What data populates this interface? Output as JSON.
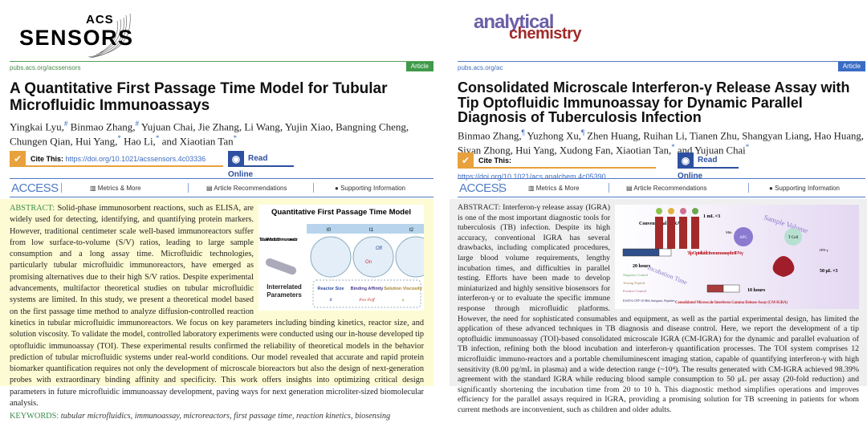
{
  "left": {
    "logo": {
      "top": "ACS",
      "main": "SENSORS"
    },
    "url": "pubs.acs.org/acssensors",
    "badge": "Article",
    "badge_color": "#3f9a4a",
    "title": "A Quantitative First Passage Time Model for Tubular Microfluidic Immunoassays",
    "authors": [
      {
        "n": "Yingkai Lyu,",
        "m": "#"
      },
      {
        "n": " Binmao Zhang,",
        "m": "#"
      },
      {
        "n": " Yujuan Chai, Jie Zhang, Li Wang, Yujin Xiao, Bangning Cheng, Chungen Qian, Hui Yang,",
        "m": "*"
      },
      {
        "n": " Hao Li,",
        "m": "*"
      },
      {
        "n": " and Xiaotian Tan",
        "m": "*"
      }
    ],
    "cite_label": "Cite This:",
    "doi": "https://doi.org/10.1021/acssensors.4c03336",
    "read_online": "Read Online",
    "access": "ACCESS",
    "metrics": "Metrics & More",
    "recommendations": "Article Recommendations",
    "supporting": "Supporting Information",
    "abstract_label": "ABSTRACT:",
    "abstract": "Solid-phase immunosorbent reactions, such as ELISA, are widely used for detecting, identifying, and quantifying protein markers. However, traditional centimeter scale well-based immunoreactors suffer from low surface-to-volume (S/V) ratios, leading to large sample consumption and a long assay time. Microfluidic technologies, particularly tubular microfluidic immunoreactors, have emerged as promising alternatives due to their high S/V ratios. Despite experimental advancements, multifactor theoretical studies on tubular microfluidic systems are limited. In this study, we present a theoretical model based on the first passage time method to analyze diffusion-controlled reaction kinetics in tubular microfluidic immunoreactors. We focus on key parameters including binding kinetics, reactor size, and solution viscosity. To validate the model, controlled laboratory experiments were conducted using our in-house developed tip optofluidic immunoassay (TOI). These experimental results confirmed the reliability of theoretical models in the behavior prediction of tubular microfluidic systems under real-world conditions. Our model revealed that accurate and rapid protein biomarker quantification requires not only the development of microscale bioreactors but also the design of next-generation probes with extraordinary binding affinity and specificity. This work offers insights into optimizing critical design parameters in future microfluidic immunoassay development, paving ways for next generation microliter-sized biomolecular analysis.",
    "keywords_label": "KEYWORDS:",
    "keywords": "tubular microfluidics, immunoassay, microreactors, first passage time, reaction kinetics, biosensing",
    "figure": {
      "title": "Quantitative First Passage Time Model",
      "t0": "t0",
      "t1": "t1",
      "t2": "t2",
      "reactor": "Tubular Microfluidic Immuno-reactor",
      "off": "Off",
      "on": "On",
      "params": "Interrelated Parameters",
      "p1": "Reactor Size",
      "p1s": "R",
      "p2": "Binding Affinity",
      "p2s": "Pon Poff",
      "p3": "Solution Viscosity",
      "p3s": "η"
    }
  },
  "right": {
    "logo": {
      "top": "analytical",
      "bottom": "chemistry"
    },
    "url": "pubs.acs.org/ac",
    "badge": "Article",
    "badge_color": "#3a6cc4",
    "title": "Consolidated Microscale Interferon-γ Release Assay with Tip Optofluidic Immunoassay for Dynamic Parallel Diagnosis of Tuberculosis Infection",
    "authors": [
      {
        "n": "Binmao Zhang,",
        "m": "¶"
      },
      {
        "n": " Yuzhong Xu,",
        "m": "¶"
      },
      {
        "n": " Zhen Huang, Ruihan Li, Tianen Zhu, Shangyan Liang, Hao Huang, Siyan Zhong, Hui Yang, Xudong Fan, Xiaotian Tan,",
        "m": "*"
      },
      {
        "n": " and Yujuan Chai",
        "m": "*"
      }
    ],
    "cite_label": "Cite This:",
    "doi": "https://doi.org/10.1021/acs.analchem.4c05390",
    "read_online": "Read Online",
    "access": "ACCESS",
    "metrics": "Metrics & More",
    "recommendations": "Article Recommendations",
    "supporting": "Supporting Information",
    "abstract_label": "ABSTRACT:",
    "abstract": "Interferon-γ release assay (IGRA) is one of the most important diagnostic tools for tuberculosis (TB) infection. Despite its high accuracy, conventional IGRA has several drawbacks, including complicated procedures, large blood volume requirements, lengthy incubation times, and difficulties in parallel testing. Efforts have been made to develop miniaturized and highly sensitive biosensors for interferon-γ or to evaluate the specific immune response through microfluidic platforms. However, the need for sophisticated consumables and equipment, as well as the partial experimental design, has limited the application of these advanced techniques in TB diagnosis and disease control. Here, we report the development of a tip optofluidic immunoassay (TOI)-based consolidated microscale IGRA (CM-IGRA) for the dynamic and parallel evaluation of TB infection, refining both the blood incubation and interferon-γ quantification processes. The TOI system comprises 12 microfluidic immuno-reactors and a portable chemiluminescent imaging station, capable of quantifying interferon-γ with high sensitivity (8.00 pg/mL in plasma) and a wide detection range (~10⁴). The results generated with CM-IGRA achieved 98.39% agreement with the standard IGRA while reducing blood sample consumption to 50 μL per assay (20-fold reduction) and significantly shortening the incubation time from 20 to 10 h. This diagnostic method simplifies operations and improves efficiency for the parallel assays required in IGRA, providing a promising solution for TB screening in patients for whom current methods are inconvenient, such as children and older adults.",
    "figure": {
      "conv": "Conventional IGRA",
      "ml": "1 mL ×3",
      "hours20": "20 hours",
      "sample": "Sample Volume",
      "tip": "Tip Optofluidic Immunoassay for IFN-γ",
      "incub": "Incubation Time",
      "hours10": "10 hours",
      "ul": "50 μL ×3",
      "cm": "Consolidated Microscale Interferon Gamma Release Assay (CM-IGRA)",
      "neg": "Negative Control",
      "test": "Testing Peptide",
      "pos": "Positive Control",
      "apc": "APC",
      "tcell": "T Cell",
      "ifn": "IFN-γ",
      "mtb": "Mtb",
      "pep": "ESAT-6 CFP-10 Mtb Antigenic Peptides"
    }
  }
}
